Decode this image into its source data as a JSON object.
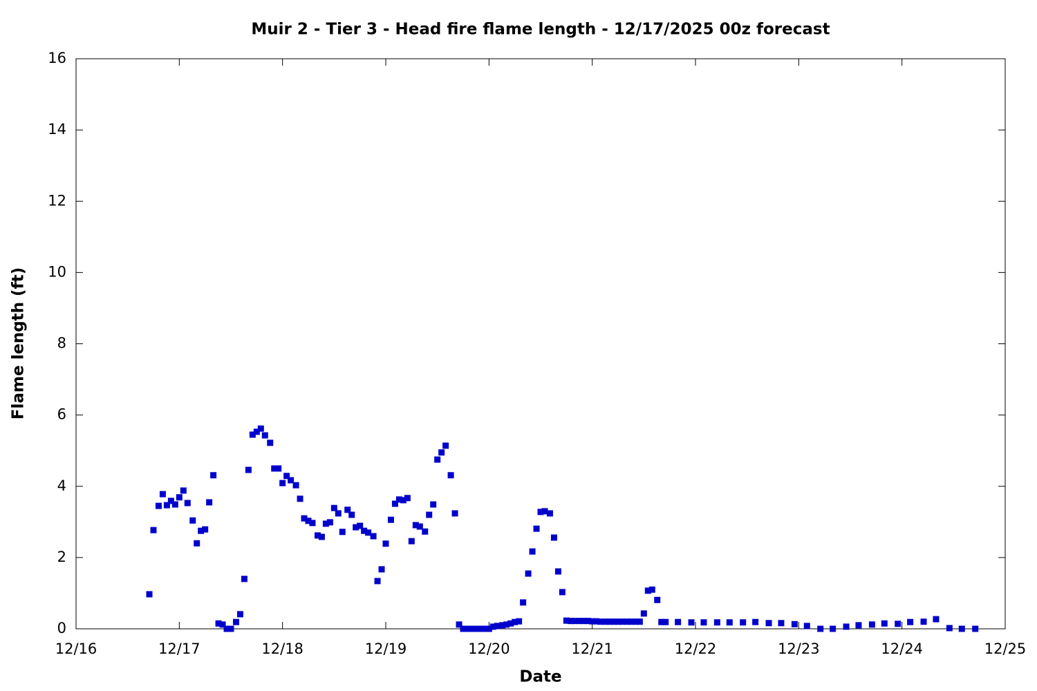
{
  "chart_data": {
    "type": "scatter",
    "title": "Muir 2 - Tier 3 - Head fire flame length - 12/17/2025 00z forecast",
    "xlabel": "Date",
    "ylabel": "Flame length (ft)",
    "color": "#0000cc",
    "xlim": [
      0,
      9
    ],
    "ylim": [
      0,
      16
    ],
    "xticks": [
      {
        "value": 0,
        "label": "12/16"
      },
      {
        "value": 1,
        "label": "12/17"
      },
      {
        "value": 2,
        "label": "12/18"
      },
      {
        "value": 3,
        "label": "12/19"
      },
      {
        "value": 4,
        "label": "12/20"
      },
      {
        "value": 5,
        "label": "12/21"
      },
      {
        "value": 6,
        "label": "12/22"
      },
      {
        "value": 7,
        "label": "12/23"
      },
      {
        "value": 8,
        "label": "12/24"
      },
      {
        "value": 9,
        "label": "12/25"
      }
    ],
    "yticks": [
      0,
      2,
      4,
      6,
      8,
      10,
      12,
      14,
      16
    ],
    "x": [
      0.71,
      0.75,
      0.8,
      0.84,
      0.88,
      0.92,
      0.96,
      1.0,
      1.04,
      1.08,
      1.13,
      1.17,
      1.21,
      1.25,
      1.29,
      1.33,
      1.38,
      1.42,
      1.46,
      1.5,
      1.55,
      1.59,
      1.63,
      1.67,
      1.71,
      1.75,
      1.79,
      1.83,
      1.88,
      1.92,
      1.96,
      2.0,
      2.04,
      2.08,
      2.13,
      2.17,
      2.21,
      2.25,
      2.29,
      2.34,
      2.38,
      2.42,
      2.46,
      2.5,
      2.54,
      2.58,
      2.63,
      2.67,
      2.71,
      2.75,
      2.79,
      2.83,
      2.88,
      2.92,
      2.96,
      3.0,
      3.05,
      3.09,
      3.13,
      3.17,
      3.21,
      3.25,
      3.29,
      3.33,
      3.38,
      3.42,
      3.46,
      3.5,
      3.54,
      3.58,
      3.63,
      3.67,
      3.71,
      3.75,
      3.79,
      3.83,
      3.88,
      3.92,
      3.96,
      4.0,
      4.04,
      4.08,
      4.13,
      4.17,
      4.21,
      4.25,
      4.29,
      4.33,
      4.38,
      4.42,
      4.46,
      4.5,
      4.54,
      4.59,
      4.63,
      4.67,
      4.71,
      4.75,
      4.79,
      4.83,
      4.88,
      4.92,
      4.96,
      5.0,
      5.04,
      5.08,
      5.13,
      5.17,
      5.21,
      5.25,
      5.29,
      5.34,
      5.38,
      5.42,
      5.46,
      5.5,
      5.54,
      5.58,
      5.63,
      5.67,
      5.71,
      5.83,
      5.96,
      6.08,
      6.21,
      6.33,
      6.46,
      6.58,
      6.71,
      6.83,
      6.96,
      7.08,
      7.21,
      7.33,
      7.46,
      7.58,
      7.71,
      7.83,
      7.96,
      8.08,
      8.21,
      8.33,
      8.46,
      8.58,
      8.71
    ],
    "values": [
      0.97,
      2.77,
      3.45,
      3.78,
      3.47,
      3.59,
      3.49,
      3.69,
      3.88,
      3.53,
      3.04,
      2.4,
      2.75,
      2.79,
      3.55,
      4.31,
      0.15,
      0.12,
      0,
      0,
      0.19,
      0.41,
      1.4,
      4.46,
      5.45,
      5.53,
      5.62,
      5.43,
      5.22,
      4.5,
      4.5,
      4.09,
      4.29,
      4.17,
      4.03,
      3.65,
      3.1,
      3.03,
      2.97,
      2.62,
      2.58,
      2.95,
      2.99,
      3.39,
      3.24,
      2.72,
      3.34,
      3.2,
      2.85,
      2.89,
      2.75,
      2.7,
      2.6,
      1.34,
      1.67,
      2.39,
      3.06,
      3.51,
      3.63,
      3.61,
      3.67,
      2.46,
      2.91,
      2.87,
      2.73,
      3.2,
      3.49,
      4.75,
      4.95,
      5.14,
      4.31,
      3.24,
      0.12,
      0,
      0,
      0,
      0,
      0,
      0,
      0,
      0.06,
      0.08,
      0.1,
      0.12,
      0.15,
      0.19,
      0.21,
      0.74,
      1.55,
      2.17,
      2.81,
      3.28,
      3.3,
      3.24,
      2.56,
      1.61,
      1.03,
      0.23,
      0.22,
      0.22,
      0.22,
      0.22,
      0.22,
      0.21,
      0.21,
      0.2,
      0.2,
      0.2,
      0.2,
      0.2,
      0.2,
      0.2,
      0.2,
      0.2,
      0.2,
      0.43,
      1.07,
      1.1,
      0.81,
      0.19,
      0.19,
      0.19,
      0.18,
      0.18,
      0.18,
      0.18,
      0.18,
      0.19,
      0.16,
      0.16,
      0.13,
      0.08,
      0,
      0,
      0.06,
      0.1,
      0.12,
      0.15,
      0.14,
      0.19,
      0.2,
      0.27,
      0.02,
      0,
      0
    ]
  }
}
